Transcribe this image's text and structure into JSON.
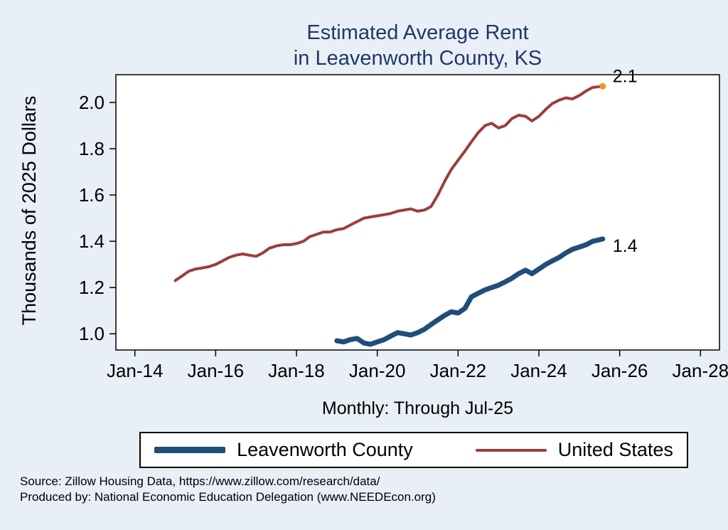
{
  "page": {
    "background": "#e8eff7",
    "title_line1": "Estimated Average Rent",
    "title_line2": "in Leavenworth County, KS",
    "title_color": "#203864",
    "subtitle": "Monthly: Through Jul-25",
    "ylabel": "Thousands of 2025 Dollars",
    "footer_line1": "Source: Zillow Housing Data, https://www.zillow.com/research/data/",
    "footer_line2": "Produced by: National Economic Education Delegation (www.NEEDEcon.org)"
  },
  "legend": {
    "items": [
      {
        "label": "Leavenworth County",
        "color": "#1f4e79",
        "weight": 9
      },
      {
        "label": "United States",
        "color": "#9c3d3d",
        "weight": 4
      }
    ]
  },
  "chart_data": {
    "type": "line",
    "title": "Estimated Average Rent in Leavenworth County, KS",
    "xlabel": "Monthly: Through Jul-25",
    "ylabel": "Thousands of 2025 Dollars",
    "xlim": [
      2013.53,
      2028.47
    ],
    "ylim": [
      0.93,
      2.12
    ],
    "grid": false,
    "legend_position": "bottom",
    "x_ticks": [
      {
        "value": 2014,
        "label": "Jan-14"
      },
      {
        "value": 2016,
        "label": "Jan-16"
      },
      {
        "value": 2018,
        "label": "Jan-18"
      },
      {
        "value": 2020,
        "label": "Jan-20"
      },
      {
        "value": 2022,
        "label": "Jan-22"
      },
      {
        "value": 2024,
        "label": "Jan-24"
      },
      {
        "value": 2026,
        "label": "Jan-26"
      },
      {
        "value": 2028,
        "label": "Jan-28"
      }
    ],
    "y_ticks": [
      {
        "value": 1.0,
        "label": "1.0"
      },
      {
        "value": 1.2,
        "label": "1.2"
      },
      {
        "value": 1.4,
        "label": "1.4"
      },
      {
        "value": 1.6,
        "label": "1.6"
      },
      {
        "value": 1.8,
        "label": "1.8"
      },
      {
        "value": 2.0,
        "label": "2.0"
      }
    ],
    "series": [
      {
        "name": "United States",
        "color": "#9c3d3d",
        "width": 4,
        "end_label": "2.1",
        "end_label_offset": [
          14,
          -6
        ],
        "end_marker_color": "#f0941e",
        "points": [
          [
            2015.0,
            1.23
          ],
          [
            2015.17,
            1.25
          ],
          [
            2015.33,
            1.27
          ],
          [
            2015.5,
            1.28
          ],
          [
            2015.67,
            1.285
          ],
          [
            2015.83,
            1.29
          ],
          [
            2016.0,
            1.3
          ],
          [
            2016.17,
            1.315
          ],
          [
            2016.33,
            1.33
          ],
          [
            2016.5,
            1.34
          ],
          [
            2016.67,
            1.345
          ],
          [
            2016.83,
            1.34
          ],
          [
            2017.0,
            1.335
          ],
          [
            2017.17,
            1.35
          ],
          [
            2017.33,
            1.37
          ],
          [
            2017.5,
            1.38
          ],
          [
            2017.67,
            1.385
          ],
          [
            2017.83,
            1.385
          ],
          [
            2018.0,
            1.39
          ],
          [
            2018.17,
            1.4
          ],
          [
            2018.33,
            1.42
          ],
          [
            2018.5,
            1.43
          ],
          [
            2018.67,
            1.44
          ],
          [
            2018.83,
            1.44
          ],
          [
            2019.0,
            1.45
          ],
          [
            2019.17,
            1.455
          ],
          [
            2019.33,
            1.47
          ],
          [
            2019.5,
            1.485
          ],
          [
            2019.67,
            1.5
          ],
          [
            2019.83,
            1.505
          ],
          [
            2020.0,
            1.51
          ],
          [
            2020.17,
            1.515
          ],
          [
            2020.33,
            1.52
          ],
          [
            2020.5,
            1.53
          ],
          [
            2020.67,
            1.535
          ],
          [
            2020.83,
            1.54
          ],
          [
            2021.0,
            1.53
          ],
          [
            2021.17,
            1.535
          ],
          [
            2021.33,
            1.55
          ],
          [
            2021.5,
            1.6
          ],
          [
            2021.67,
            1.66
          ],
          [
            2021.83,
            1.71
          ],
          [
            2022.0,
            1.75
          ],
          [
            2022.17,
            1.79
          ],
          [
            2022.33,
            1.83
          ],
          [
            2022.5,
            1.87
          ],
          [
            2022.67,
            1.9
          ],
          [
            2022.83,
            1.91
          ],
          [
            2023.0,
            1.89
          ],
          [
            2023.17,
            1.9
          ],
          [
            2023.33,
            1.93
          ],
          [
            2023.5,
            1.945
          ],
          [
            2023.67,
            1.94
          ],
          [
            2023.83,
            1.92
          ],
          [
            2024.0,
            1.94
          ],
          [
            2024.17,
            1.97
          ],
          [
            2024.33,
            1.995
          ],
          [
            2024.5,
            2.01
          ],
          [
            2024.67,
            2.02
          ],
          [
            2024.83,
            2.015
          ],
          [
            2025.0,
            2.03
          ],
          [
            2025.17,
            2.05
          ],
          [
            2025.33,
            2.065
          ],
          [
            2025.58,
            2.07
          ]
        ]
      },
      {
        "name": "Leavenworth County",
        "color": "#1f4e79",
        "width": 7,
        "end_label": "1.4",
        "end_label_offset": [
          14,
          18
        ],
        "end_marker_color": null,
        "points": [
          [
            2019.0,
            0.97
          ],
          [
            2019.17,
            0.965
          ],
          [
            2019.33,
            0.975
          ],
          [
            2019.5,
            0.98
          ],
          [
            2019.67,
            0.96
          ],
          [
            2019.83,
            0.955
          ],
          [
            2020.0,
            0.965
          ],
          [
            2020.17,
            0.975
          ],
          [
            2020.33,
            0.99
          ],
          [
            2020.5,
            1.005
          ],
          [
            2020.67,
            1.0
          ],
          [
            2020.83,
            0.995
          ],
          [
            2021.0,
            1.005
          ],
          [
            2021.17,
            1.02
          ],
          [
            2021.33,
            1.04
          ],
          [
            2021.5,
            1.06
          ],
          [
            2021.67,
            1.08
          ],
          [
            2021.83,
            1.095
          ],
          [
            2022.0,
            1.09
          ],
          [
            2022.17,
            1.11
          ],
          [
            2022.33,
            1.16
          ],
          [
            2022.5,
            1.175
          ],
          [
            2022.67,
            1.19
          ],
          [
            2022.83,
            1.2
          ],
          [
            2023.0,
            1.21
          ],
          [
            2023.17,
            1.225
          ],
          [
            2023.33,
            1.24
          ],
          [
            2023.5,
            1.26
          ],
          [
            2023.67,
            1.275
          ],
          [
            2023.83,
            1.26
          ],
          [
            2024.0,
            1.28
          ],
          [
            2024.17,
            1.3
          ],
          [
            2024.33,
            1.315
          ],
          [
            2024.5,
            1.33
          ],
          [
            2024.67,
            1.35
          ],
          [
            2024.83,
            1.365
          ],
          [
            2025.0,
            1.375
          ],
          [
            2025.17,
            1.385
          ],
          [
            2025.33,
            1.4
          ],
          [
            2025.58,
            1.41
          ]
        ]
      }
    ]
  }
}
